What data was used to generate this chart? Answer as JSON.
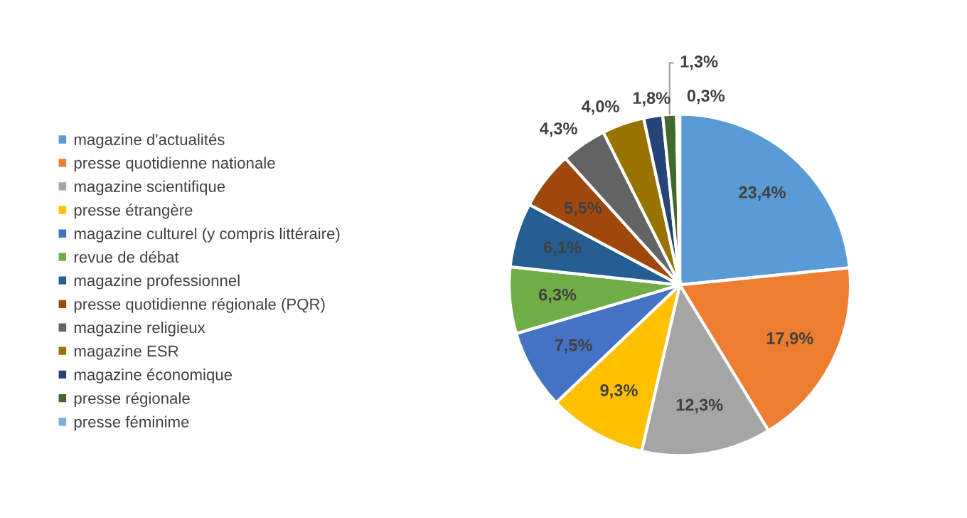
{
  "chart_data": {
    "type": "pie",
    "categories": [
      "magazine d'actualités",
      "presse quotidienne nationale",
      "magazine scientifique",
      "presse étrangère",
      "magazine culturel (y compris littéraire)",
      "revue de débat",
      "magazine professionnel",
      "presse quotidienne régionale (PQR)",
      "magazine religieux",
      "magazine ESR",
      "magazine économique",
      "presse régionale",
      "presse féminime"
    ],
    "values": [
      23.4,
      17.9,
      12.3,
      9.3,
      7.5,
      6.3,
      6.1,
      5.5,
      4.3,
      4.0,
      1.8,
      1.3,
      0.3
    ],
    "value_labels": [
      "23,4%",
      "17,9%",
      "12,3%",
      "9,3%",
      "7,5%",
      "6,3%",
      "6,1%",
      "5,5%",
      "4,3%",
      "4,0%",
      "1,8%",
      "1,3%",
      "0,3%"
    ],
    "colors": [
      "#5b9bd5",
      "#ed7d31",
      "#a5a5a5",
      "#ffc000",
      "#4472c4",
      "#70ad47",
      "#255e91",
      "#9e480e",
      "#636363",
      "#997300",
      "#264478",
      "#43682b",
      "#7cafdd"
    ],
    "legend": "left"
  }
}
